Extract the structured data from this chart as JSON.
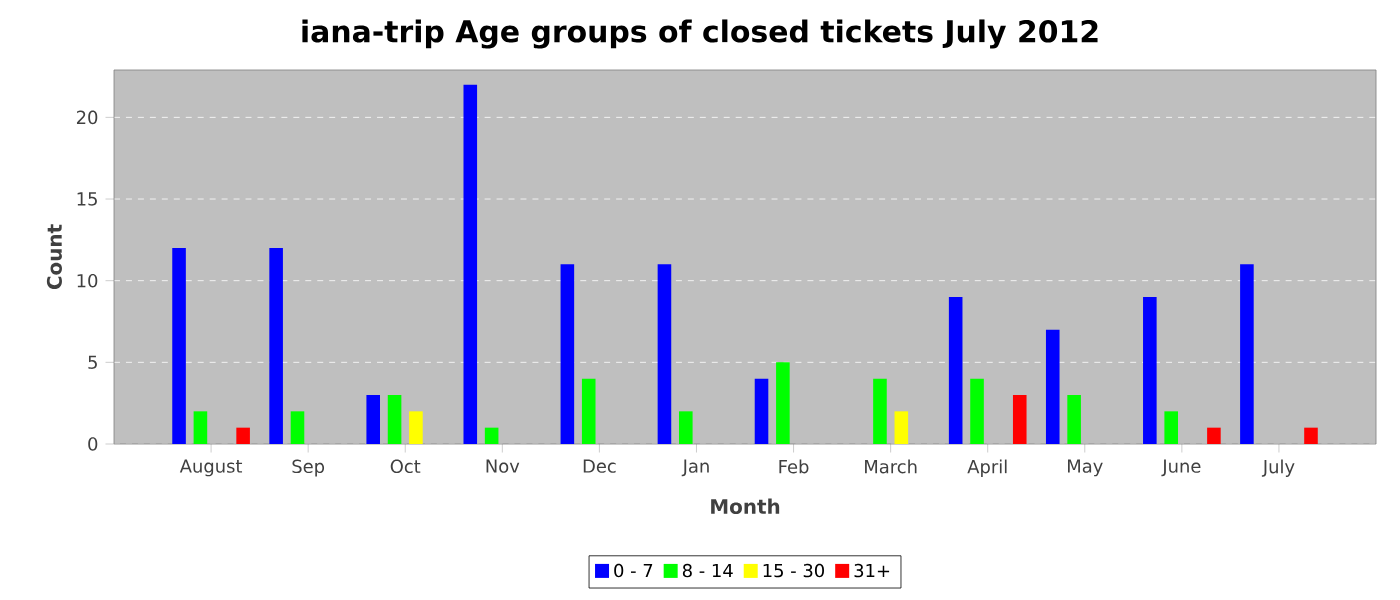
{
  "chart_data": {
    "type": "bar",
    "title": "iana-trip Age groups of closed tickets July 2012",
    "xlabel": "Month",
    "ylabel": "Count",
    "categories": [
      "August",
      "Sep",
      "Oct",
      "Nov",
      "Dec",
      "Jan",
      "Feb",
      "March",
      "April",
      "May",
      "June",
      "July"
    ],
    "series": [
      {
        "name": "0 - 7",
        "color": "#0000ff",
        "values": [
          12,
          12,
          3,
          22,
          11,
          11,
          4,
          0,
          9,
          7,
          9,
          11
        ]
      },
      {
        "name": "8 - 14",
        "color": "#00ff00",
        "values": [
          2,
          2,
          3,
          1,
          4,
          2,
          5,
          4,
          4,
          3,
          2,
          0
        ]
      },
      {
        "name": "15 - 30",
        "color": "#ffff00",
        "values": [
          0,
          0,
          2,
          0,
          0,
          0,
          0,
          2,
          0,
          0,
          0,
          0
        ]
      },
      {
        "name": "31+",
        "color": "#ff0000",
        "values": [
          1,
          0,
          0,
          0,
          0,
          0,
          0,
          0,
          3,
          0,
          1,
          1
        ]
      }
    ],
    "ylim": [
      0,
      22.9
    ],
    "yticks": [
      0,
      5,
      10,
      15,
      20
    ],
    "grid": "y",
    "legend": "bottom"
  }
}
